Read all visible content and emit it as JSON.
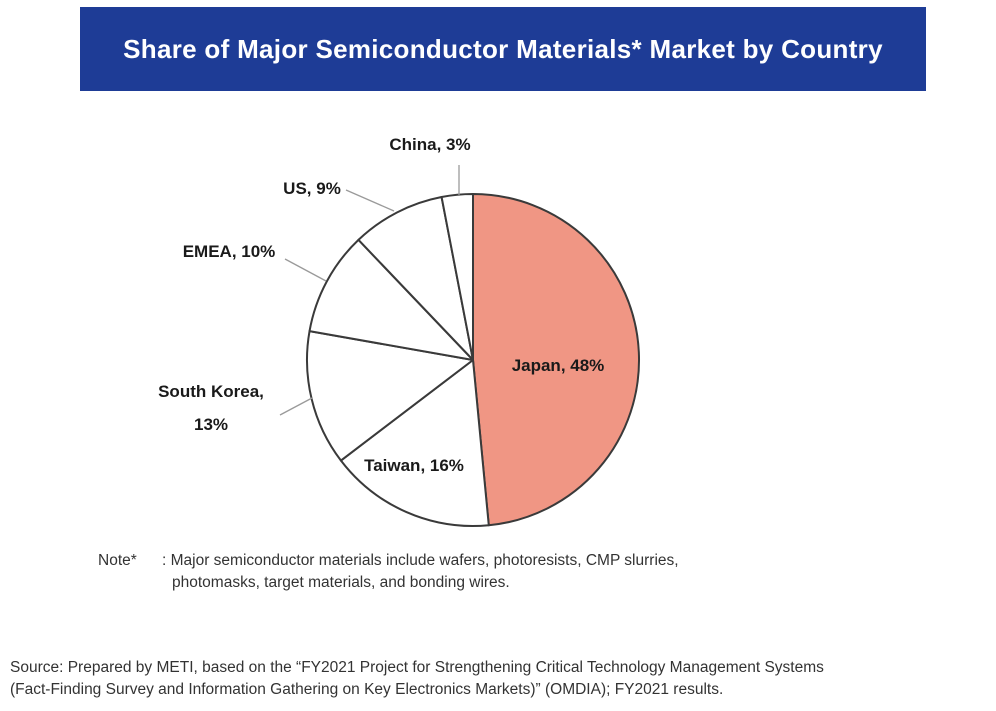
{
  "chart_data": {
    "type": "pie",
    "title": "Share of Major Semiconductor Materials* Market by Country",
    "start_angle_deg": 0,
    "direction": "clockwise",
    "slices": [
      {
        "name": "Japan",
        "label": "Japan, 48%",
        "value": 48,
        "color": "#f09684"
      },
      {
        "name": "Taiwan",
        "label": "Taiwan, 16%",
        "value": 16,
        "color": "#ffffff"
      },
      {
        "name": "South Korea",
        "label_lines": [
          "South Korea,",
          "13%"
        ],
        "value": 13,
        "color": "#ffffff"
      },
      {
        "name": "EMEA",
        "label": "EMEA, 10%",
        "value": 10,
        "color": "#ffffff"
      },
      {
        "name": "US",
        "label": "US, 9%",
        "value": 9,
        "color": "#ffffff"
      },
      {
        "name": "China",
        "label": "China, 3%",
        "value": 3,
        "color": "#ffffff"
      }
    ],
    "stroke_color": "#3a3a3a",
    "leader_color": "#9a9a9a"
  },
  "colors": {
    "banner_bg": "#1e3c96",
    "banner_text": "#ffffff"
  },
  "note": {
    "label": "Note*",
    "text_lines": [
      ": Major semiconductor materials include wafers, photoresists, CMP slurries,",
      "photomasks, target materials, and bonding wires."
    ]
  },
  "source": {
    "lines": [
      "Source: Prepared by METI, based on the “FY2021 Project for Strengthening Critical Technology Management Systems",
      "(Fact-Finding Survey and Information Gathering on Key Electronics Markets)” (OMDIA); FY2021 results."
    ]
  }
}
